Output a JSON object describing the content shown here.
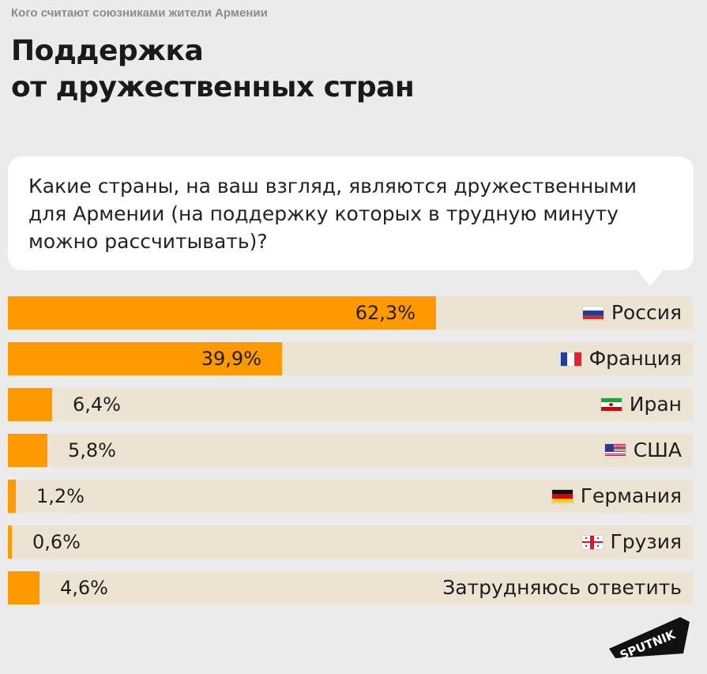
{
  "header": {
    "supertitle": "Кого считают союзниками жители Армении",
    "title_line1": "Поддержка",
    "title_line2": "от дружественных стран"
  },
  "question": "Какие страны, на ваш взгляд, являются дружественными для Армении (на поддержку которых в трудную минуту можно рассчитывать)?",
  "colors": {
    "bar": "#ff9900",
    "track": "#ede3d3",
    "background": "#ebebeb"
  },
  "logo": {
    "text": "SPUTNIK"
  },
  "chart_data": {
    "type": "bar",
    "orientation": "horizontal",
    "categories": [
      "Россия",
      "Франция",
      "Иран",
      "США",
      "Германия",
      "Грузия",
      "Затрудняюсь ответить"
    ],
    "values": [
      62.3,
      39.9,
      6.4,
      5.8,
      1.2,
      0.6,
      4.6
    ],
    "value_labels": [
      "62,3%",
      "39,9%",
      "6,4%",
      "5,8%",
      "1,2%",
      "0,6%",
      "4,6%"
    ],
    "flags": [
      "russia-flag-icon",
      "france-flag-icon",
      "iran-flag-icon",
      "usa-flag-icon",
      "germany-flag-icon",
      "georgia-flag-icon",
      ""
    ],
    "xlim": [
      0,
      100
    ],
    "unit": "%"
  }
}
